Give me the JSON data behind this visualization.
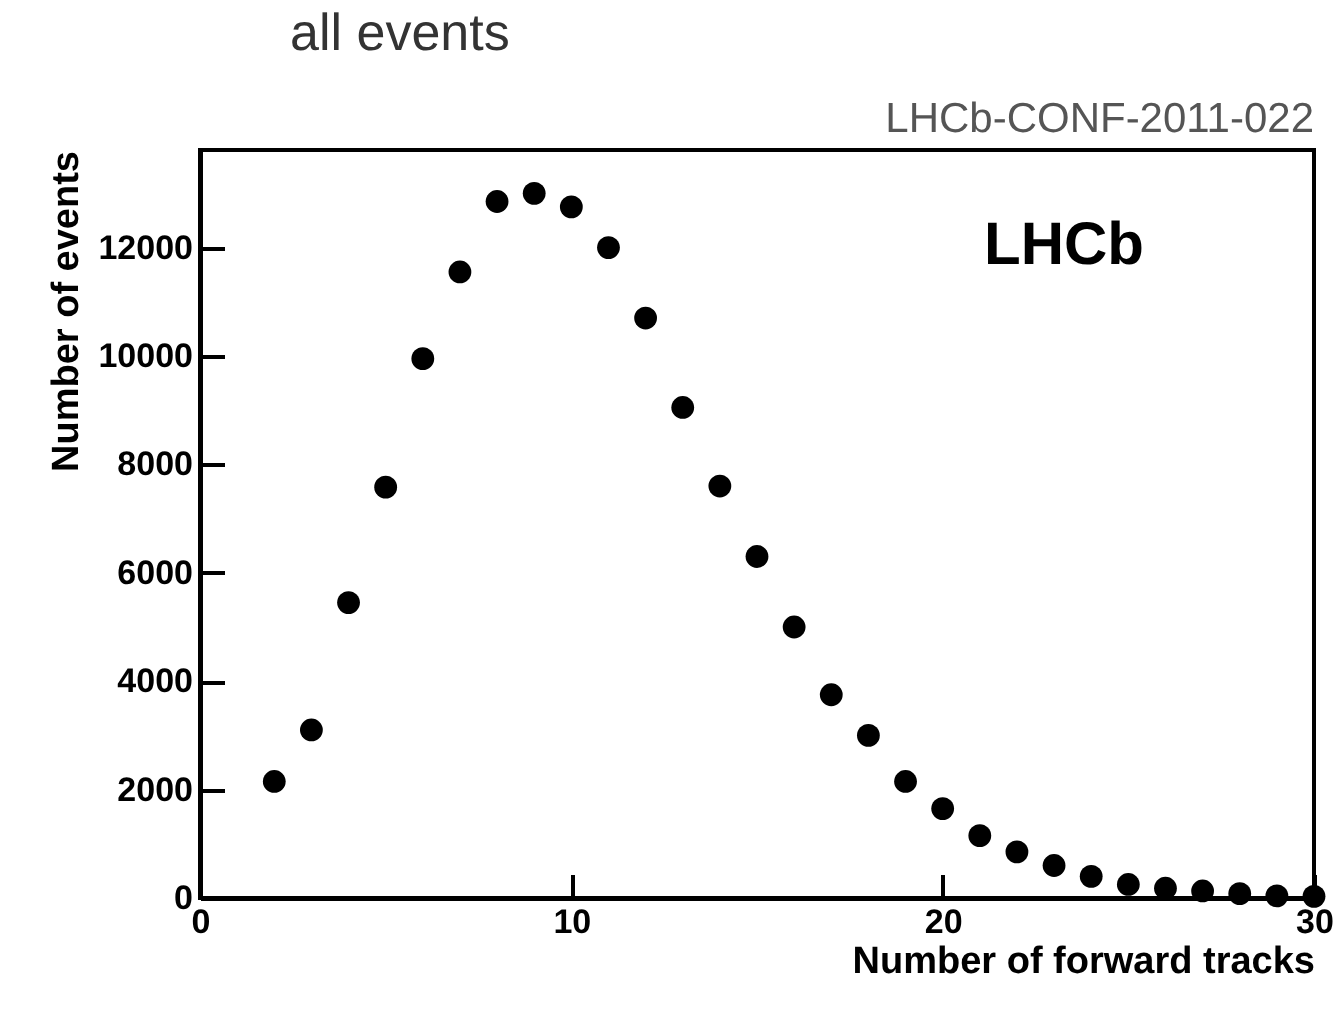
{
  "chart_data": {
    "type": "scatter",
    "title": "all events",
    "xlabel": "Number of forward tracks",
    "ylabel": "Number of events",
    "annotations": [
      "LHCb-CONF-2011-022",
      "LHCb"
    ],
    "x": [
      2,
      3,
      4,
      5,
      6,
      7,
      8,
      9,
      10,
      11,
      12,
      13,
      14,
      15,
      16,
      17,
      18,
      19,
      20,
      21,
      22,
      23,
      24,
      25,
      26,
      27,
      28,
      29,
      30
    ],
    "series": [
      {
        "color": "#000000",
        "values": [
          2150,
          3100,
          5450,
          7580,
          9950,
          11550,
          12850,
          13000,
          12750,
          12000,
          10700,
          9050,
          7600,
          6300,
          5000,
          3750,
          3000,
          2150,
          1650,
          1150,
          850,
          600,
          400,
          250,
          180,
          130,
          80,
          40,
          30
        ]
      }
    ],
    "xlim": [
      0,
      30
    ],
    "xticks": [
      0,
      10,
      20,
      30
    ],
    "ylim": [
      0,
      13800
    ],
    "yticks": [
      0,
      2000,
      4000,
      6000,
      8000,
      10000,
      12000
    ],
    "grid": false,
    "marker": "circle"
  }
}
